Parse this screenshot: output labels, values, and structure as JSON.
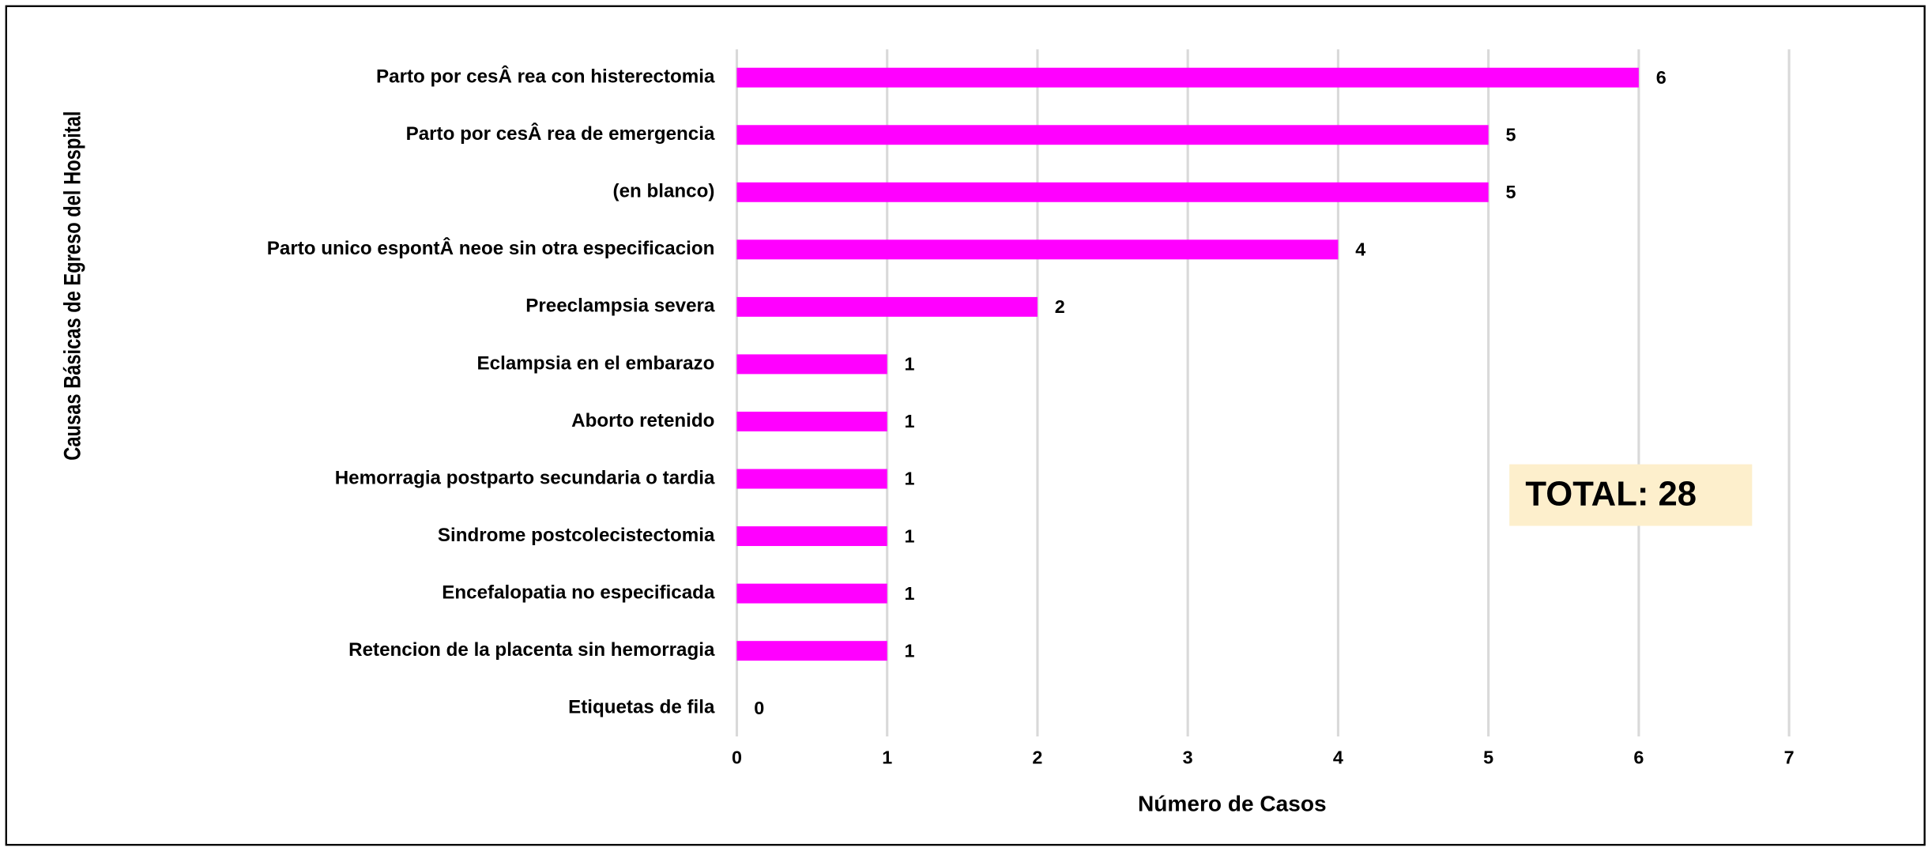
{
  "chart_data": {
    "type": "bar",
    "orientation": "horizontal",
    "x_label": "Número de Casos",
    "y_label": "Causas Básicas de Egreso del Hospital",
    "annotation": "TOTAL: 28",
    "categories": [
      "Parto por cesÂ rea con histerectomia",
      "Parto por cesÂ rea de emergencia",
      "(en blanco)",
      "Parto unico espontÂ neoe sin otra especificacion",
      "Preeclampsia severa",
      "Eclampsia en el embarazo",
      "Aborto retenido",
      "Hemorragia postparto secundaria o tardia",
      "Sindrome postcolecistectomia",
      "Encefalopatia no especificada",
      "Retencion de la placenta sin hemorragia",
      "Etiquetas de fila"
    ],
    "values": [
      6,
      5,
      5,
      4,
      2,
      1,
      1,
      1,
      1,
      1,
      1,
      0
    ],
    "color": "#ff00ff",
    "xlim": [
      0,
      7
    ],
    "xticks": [
      0,
      1,
      2,
      3,
      4,
      5,
      6,
      7
    ],
    "grid": true
  }
}
